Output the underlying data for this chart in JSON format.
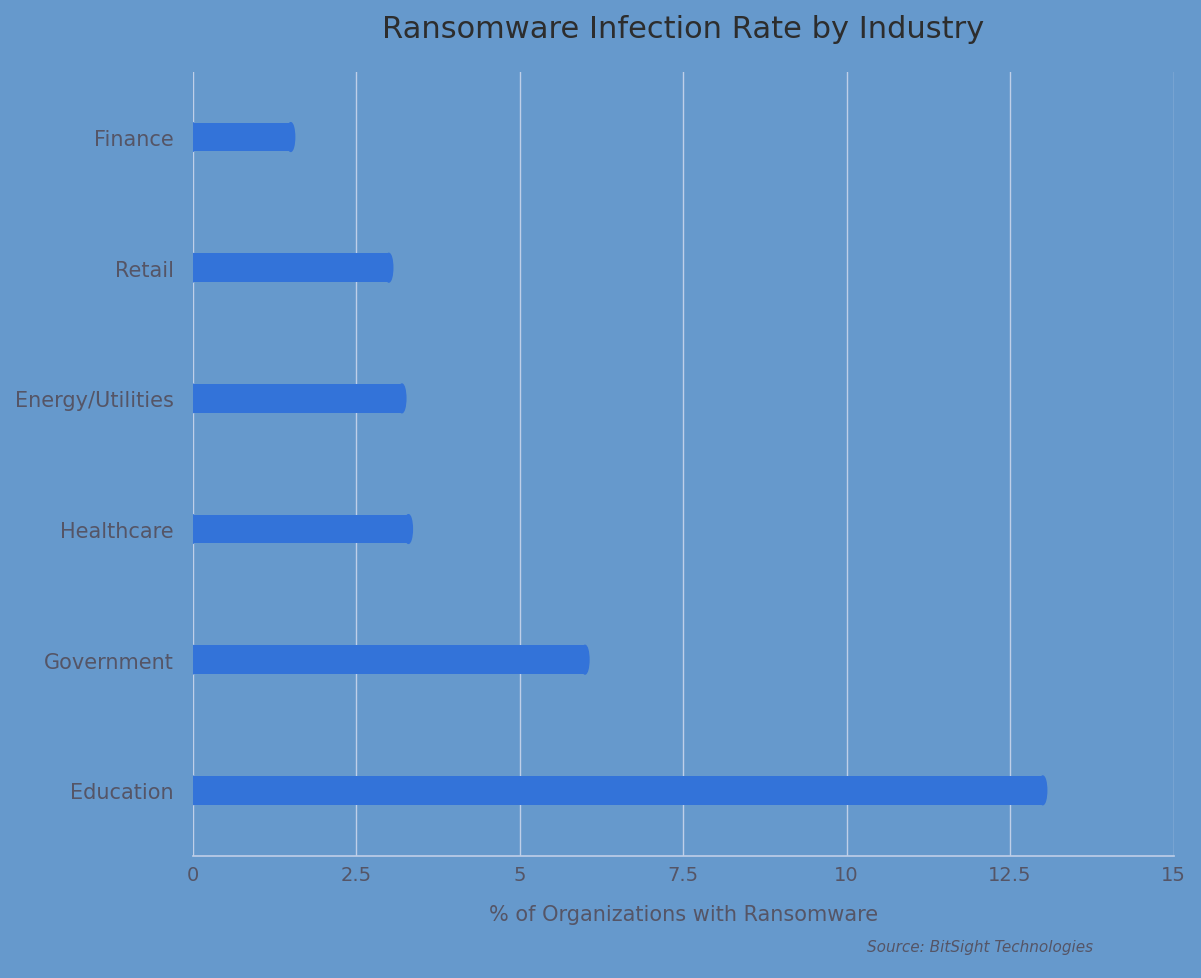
{
  "title": "Ransomware Infection Rate by Industry",
  "categories": [
    "Education",
    "Government",
    "Healthcare",
    "Energy/Utilities",
    "Retail",
    "Finance"
  ],
  "values": [
    13.0,
    6.0,
    3.3,
    3.2,
    3.0,
    1.5
  ],
  "bar_color": "#3373D9",
  "background_color": "#6699CC",
  "text_color": "#555566",
  "grid_color": "#BFCFE8",
  "xlabel": "% of Organizations with Ransomware",
  "xlim": [
    0,
    15
  ],
  "xticks": [
    0,
    2.5,
    5,
    7.5,
    10,
    12.5,
    15
  ],
  "xtick_labels": [
    "0",
    "2.5",
    "5",
    "7.5",
    "10",
    "12.5",
    "15"
  ],
  "bar_height": 0.22,
  "source_text": "Source: BitSight Technologies",
  "title_fontsize": 22,
  "label_fontsize": 15,
  "tick_fontsize": 14,
  "source_fontsize": 11
}
